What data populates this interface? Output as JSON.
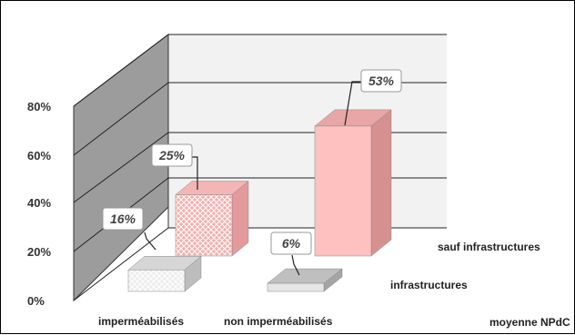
{
  "chart_data": {
    "type": "bar",
    "categories": [
      "imperméabilisés",
      "non imperméabilisés"
    ],
    "series": [
      {
        "name": "infrastructures",
        "values": [
          16,
          6
        ],
        "labels": [
          "16%",
          "6%"
        ],
        "color": "#e8e8e8"
      },
      {
        "name": "sauf infrastructures",
        "values": [
          25,
          53
        ],
        "labels": [
          "25%",
          "53%"
        ],
        "color": "#ffc0c0"
      }
    ],
    "yticks": [
      "0%",
      "20%",
      "40%",
      "60%",
      "80%"
    ],
    "ylim": [
      0,
      80
    ],
    "grid": true,
    "footer": "moyenne NPdC",
    "colors": {
      "wall": "#9c9c9c",
      "back_wall": "#f2f2f2",
      "gray_bar": "#e6e6e6",
      "pink_bar": "#ffc0c0"
    }
  }
}
